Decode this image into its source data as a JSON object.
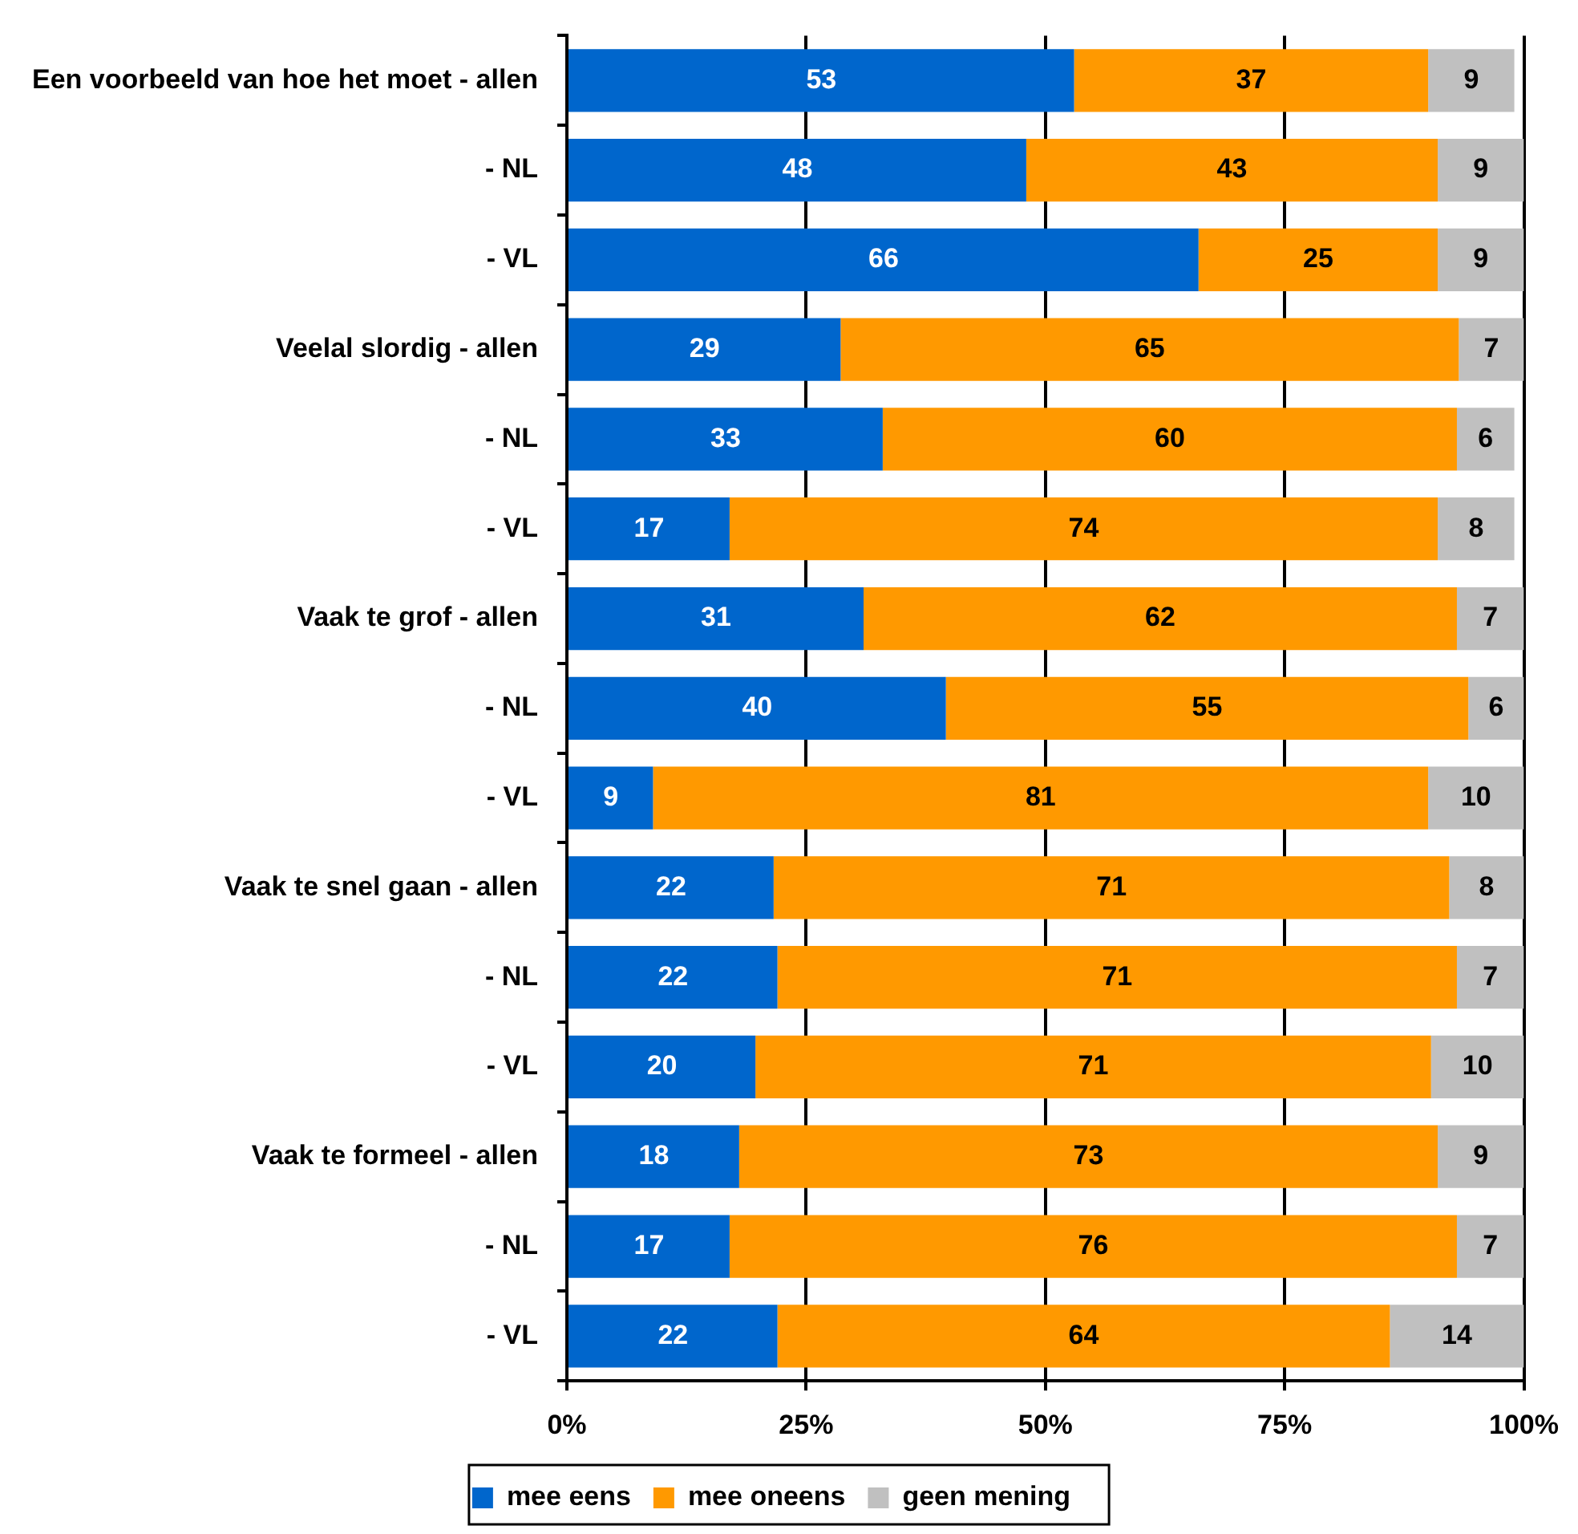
{
  "chart_data": {
    "type": "bar",
    "orientation": "horizontal",
    "stacked": true,
    "categories": [
      "Een voorbeeld van hoe het moet - allen",
      "- NL",
      "- VL",
      "Veelal slordig - allen",
      "- NL",
      "- VL",
      "Vaak te grof - allen",
      "- NL",
      "- VL",
      "Vaak te snel gaan - allen",
      "- NL",
      "- VL",
      "Vaak te formeel - allen",
      "- NL",
      "- VL"
    ],
    "series": [
      {
        "name": "mee eens",
        "color": "#0066cc",
        "values": [
          53,
          48,
          66,
          28.6,
          33,
          17,
          31,
          39.6,
          9,
          21.6,
          22,
          19.7,
          18,
          17,
          22
        ],
        "value_labels": [
          "53",
          "48",
          "66",
          "29",
          "33",
          "17",
          "31",
          "40",
          "9",
          "22",
          "22",
          "20",
          "18",
          "17",
          "22"
        ]
      },
      {
        "name": "mee oneens",
        "color": "#ff9900",
        "values": [
          37,
          43,
          25,
          64.6,
          60,
          74,
          62,
          54.6,
          81,
          70.6,
          71,
          70.6,
          73,
          76,
          64
        ],
        "value_labels": [
          "37",
          "43",
          "25",
          "65",
          "60",
          "74",
          "62",
          "55",
          "81",
          "71",
          "71",
          "71",
          "73",
          "76",
          "64"
        ]
      },
      {
        "name": "geen mening",
        "color": "#c0c0c0",
        "values": [
          9,
          9,
          9,
          6.8,
          6,
          8,
          7,
          5.8,
          10,
          7.8,
          7,
          9.7,
          9,
          7,
          14
        ],
        "value_labels": [
          "9",
          "9",
          "9",
          "7",
          "6",
          "8",
          "7",
          "6",
          "10",
          "8",
          "7",
          "10",
          "9",
          "7",
          "14"
        ]
      }
    ],
    "xlim": [
      0,
      100
    ],
    "xticks": [
      {
        "value": 0,
        "label": "0%"
      },
      {
        "value": 25,
        "label": "25%"
      },
      {
        "value": 50,
        "label": "50%"
      },
      {
        "value": 75,
        "label": "75%"
      },
      {
        "value": 100,
        "label": "100%"
      }
    ],
    "grid": "x",
    "legend": "bottom"
  }
}
